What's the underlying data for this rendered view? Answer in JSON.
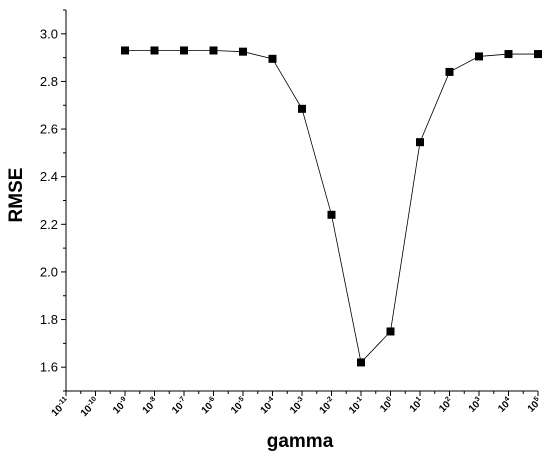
{
  "chart_data": {
    "type": "line",
    "title": "",
    "xlabel": "gamma",
    "ylabel": "RMSE",
    "x_scale": "log10",
    "x_tick_base": "10",
    "x_tick_exponents": [
      "-11",
      "-10",
      "-9",
      "-8",
      "-7",
      "-6",
      "-5",
      "-4",
      "-3",
      "-2",
      "-1",
      "0",
      "1",
      "2",
      "3",
      "4",
      "5"
    ],
    "y_ticks": [
      "1.6",
      "1.8",
      "2.0",
      "2.2",
      "2.4",
      "2.6",
      "2.8",
      "3.0"
    ],
    "ylim": [
      1.5,
      3.1
    ],
    "grid": false,
    "legend": "none",
    "marker": "square",
    "line_color": "#000000",
    "series": [
      {
        "x": [
          1e-09,
          1e-08,
          1e-07,
          1e-06,
          1e-05,
          0.0001,
          0.001,
          0.01,
          0.1,
          1,
          10,
          100,
          1000,
          10000,
          100000
        ],
        "values": [
          2.93,
          2.93,
          2.93,
          2.93,
          2.925,
          2.895,
          2.685,
          2.24,
          1.62,
          1.75,
          2.545,
          2.84,
          2.905,
          2.915,
          2.915
        ]
      }
    ]
  }
}
